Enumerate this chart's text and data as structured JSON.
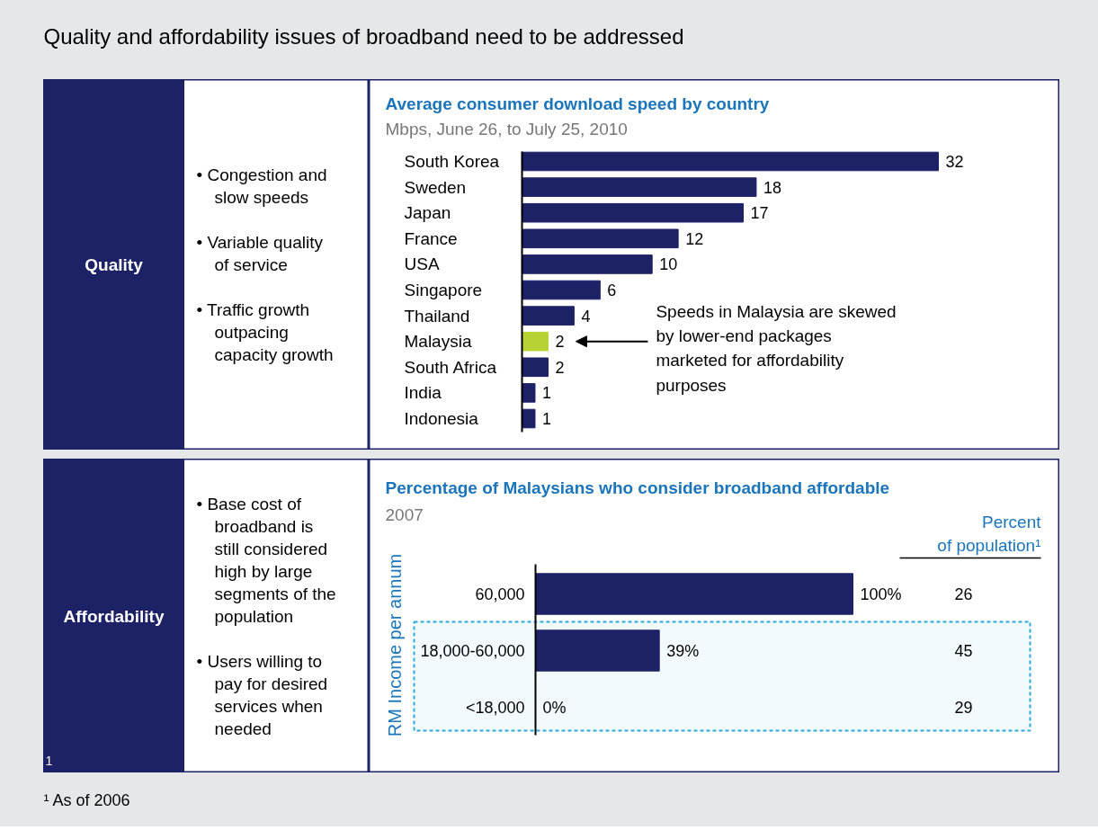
{
  "chart_data": [
    {
      "type": "other",
      "title": "Quality and affordability issues of broadband need to be addressed"
    },
    {
      "type": "other",
      "title": "Quality",
      "annotations": [
        "• Congestion and slow speeds",
        "• Variable quality of service",
        "• Traffic growth outpacing capacity growth"
      ]
    },
    {
      "type": "bar",
      "orientation": "horizontal",
      "title": "Average consumer download speed by country",
      "subtitle": "Mbps, June 26, to July 25, 2010",
      "categories": [
        "South Korea",
        "Sweden",
        "Japan",
        "France",
        "USA",
        "Singapore",
        "Thailand",
        "Malaysia",
        "South Africa",
        "India",
        "Indonesia"
      ],
      "values": [
        32,
        18,
        17,
        12,
        10,
        6,
        4,
        2,
        2,
        1,
        1
      ],
      "colors": [
        "#1d2166",
        "#1d2166",
        "#1d2166",
        "#1d2166",
        "#1d2166",
        "#1d2166",
        "#1d2166",
        "#b5d334",
        "#1d2166",
        "#1d2166",
        "#1d2166"
      ],
      "data_labels": true,
      "annotations": [
        "Speeds in Malaysia are skewed by lower-end packages marketed for affordability purposes"
      ]
    },
    {
      "type": "other",
      "title": "Affordability",
      "subtitle": "1",
      "annotations": [
        "• Base cost of broadband is still considered high by large segments of the population",
        "• Users willing to pay for desired services when needed"
      ]
    },
    {
      "type": "bar",
      "orientation": "horizontal",
      "title": "Percentage of Malaysians who consider broadband affordable",
      "subtitle": "2007",
      "ylabel": "RM Income per annum",
      "categories": [
        "60,000",
        "18,000-60,000",
        "<18,000"
      ],
      "values": [
        100,
        39,
        0
      ],
      "color": "#1d2166",
      "value_labels": [
        "100%",
        "39%",
        "0%"
      ],
      "bands": [
        {
          "axis": "y",
          "from": "18,000-60,000",
          "to": "<18,000",
          "color": "#29abe2"
        }
      ],
      "annotations": [
        "Percent of population¹",
        "26",
        "45",
        "29"
      ]
    },
    {
      "type": "other",
      "annotations": [
        "¹ As of 2006"
      ]
    }
  ]
}
